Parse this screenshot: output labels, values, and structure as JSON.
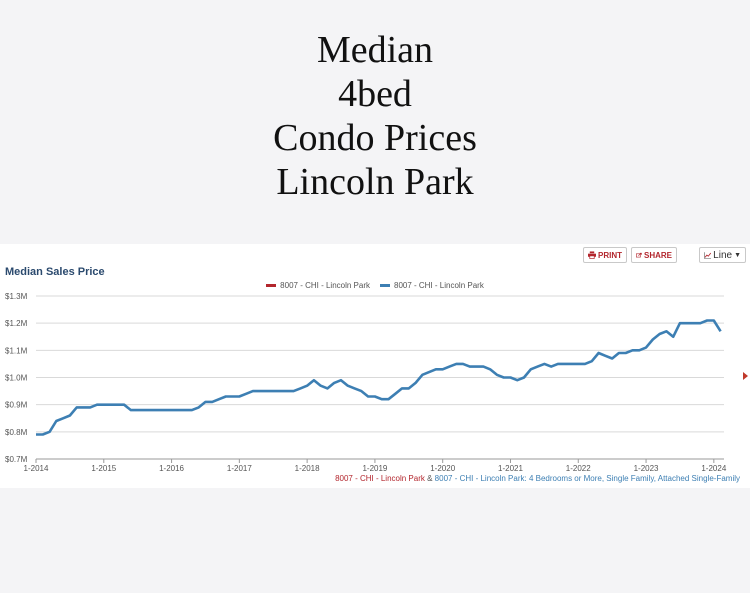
{
  "headline": [
    "Median",
    "4bed",
    "Condo Prices",
    "Lincoln Park"
  ],
  "toolbar": {
    "print_label": "PRINT",
    "share_label": "SHARE",
    "chart_type_label": "Line",
    "print_icon": "printer-icon",
    "share_icon": "share-icon",
    "line_icon": "line-chart-icon"
  },
  "chart_data": {
    "type": "line",
    "title": "Median Sales Price",
    "legend_position": "top-center",
    "legend": [
      {
        "name": "8007 - CHI - Lincoln Park",
        "color": "#b3262d"
      },
      {
        "name": "8007 - CHI - Lincoln Park",
        "color": "#3d7fb3"
      }
    ],
    "y_ticks": [
      "$0.7M",
      "$0.8M",
      "$0.9M",
      "$1.0M",
      "$1.1M",
      "$1.2M",
      "$1.3M"
    ],
    "ylim": [
      0.7,
      1.3
    ],
    "x_ticks": [
      "1-2014",
      "1-2015",
      "1-2016",
      "1-2017",
      "1-2018",
      "1-2019",
      "1-2020",
      "1-2021",
      "1-2022",
      "1-2023",
      "1-2024"
    ],
    "xlim": [
      2014.0,
      2024.15
    ],
    "grid": "horizontal",
    "series": [
      {
        "color": "#3d7fb3",
        "x": [
          2014.0,
          2014.1,
          2014.2,
          2014.3,
          2014.4,
          2014.5,
          2014.6,
          2014.7,
          2014.8,
          2014.9,
          2015.0,
          2015.2,
          2015.3,
          2015.4,
          2015.5,
          2015.6,
          2015.8,
          2015.9,
          2016.0,
          2016.2,
          2016.3,
          2016.4,
          2016.5,
          2016.6,
          2016.7,
          2016.8,
          2016.9,
          2017.0,
          2017.1,
          2017.2,
          2017.4,
          2017.5,
          2017.6,
          2017.8,
          2017.9,
          2018.0,
          2018.1,
          2018.2,
          2018.3,
          2018.4,
          2018.5,
          2018.6,
          2018.7,
          2018.8,
          2018.9,
          2019.0,
          2019.1,
          2019.2,
          2019.3,
          2019.4,
          2019.5,
          2019.6,
          2019.7,
          2019.8,
          2019.9,
          2020.0,
          2020.1,
          2020.2,
          2020.3,
          2020.4,
          2020.5,
          2020.6,
          2020.7,
          2020.8,
          2020.9,
          2021.0,
          2021.1,
          2021.2,
          2021.3,
          2021.4,
          2021.5,
          2021.6,
          2021.7,
          2021.8,
          2021.9,
          2022.0,
          2022.1,
          2022.2,
          2022.3,
          2022.4,
          2022.5,
          2022.6,
          2022.7,
          2022.8,
          2022.9,
          2023.0,
          2023.1,
          2023.2,
          2023.3,
          2023.4,
          2023.5,
          2023.6,
          2023.7,
          2023.8,
          2023.9,
          2024.0,
          2024.1
        ],
        "values": [
          0.79,
          0.79,
          0.8,
          0.84,
          0.85,
          0.86,
          0.89,
          0.89,
          0.89,
          0.9,
          0.9,
          0.9,
          0.9,
          0.88,
          0.88,
          0.88,
          0.88,
          0.88,
          0.88,
          0.88,
          0.88,
          0.89,
          0.91,
          0.91,
          0.92,
          0.93,
          0.93,
          0.93,
          0.94,
          0.95,
          0.95,
          0.95,
          0.95,
          0.95,
          0.96,
          0.97,
          0.99,
          0.97,
          0.96,
          0.98,
          0.99,
          0.97,
          0.96,
          0.95,
          0.93,
          0.93,
          0.92,
          0.92,
          0.94,
          0.96,
          0.96,
          0.98,
          1.01,
          1.02,
          1.03,
          1.03,
          1.04,
          1.05,
          1.05,
          1.04,
          1.04,
          1.04,
          1.03,
          1.01,
          1.0,
          1.0,
          0.99,
          1.0,
          1.03,
          1.04,
          1.05,
          1.04,
          1.05,
          1.05,
          1.05,
          1.05,
          1.05,
          1.06,
          1.09,
          1.08,
          1.07,
          1.09,
          1.09,
          1.1,
          1.1,
          1.11,
          1.14,
          1.16,
          1.17,
          1.15,
          1.2,
          1.2,
          1.2,
          1.2,
          1.21,
          1.21,
          1.17
        ]
      }
    ]
  },
  "footnote": {
    "part1": "8007 - CHI - Lincoln Park",
    "amp": " & ",
    "part2": "8007 - CHI - Lincoln Park",
    "part3": ": 4 Bedrooms or More, Single Family, Attached Single-Family"
  }
}
